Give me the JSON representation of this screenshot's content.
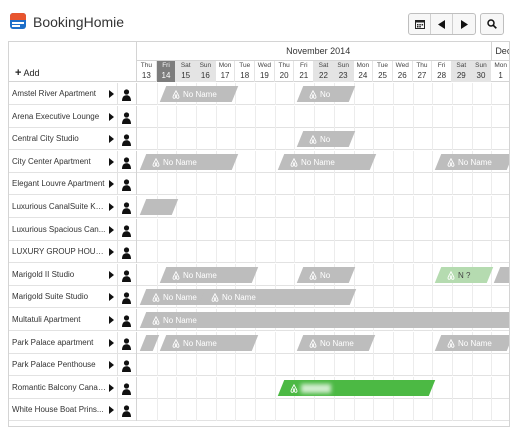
{
  "app": {
    "name": "BookingHomie"
  },
  "toolbar": {
    "calendar_icon": "calendar-icon",
    "prev_icon": "prev-arrow-icon",
    "next_icon": "next-arrow-icon",
    "search_icon": "search-icon"
  },
  "calendar": {
    "add_label": "Add",
    "months": [
      {
        "label": "November 2014"
      },
      {
        "label": "Dec"
      }
    ],
    "days": [
      {
        "dn": "Thu",
        "dd": "13",
        "kind": ""
      },
      {
        "dn": "Fri",
        "dd": "14",
        "kind": "today"
      },
      {
        "dn": "Sat",
        "dd": "15",
        "kind": "weekend"
      },
      {
        "dn": "Sun",
        "dd": "16",
        "kind": "weekend"
      },
      {
        "dn": "Mon",
        "dd": "17",
        "kind": ""
      },
      {
        "dn": "Tue",
        "dd": "18",
        "kind": ""
      },
      {
        "dn": "Wed",
        "dd": "19",
        "kind": ""
      },
      {
        "dn": "Thu",
        "dd": "20",
        "kind": ""
      },
      {
        "dn": "Fri",
        "dd": "21",
        "kind": ""
      },
      {
        "dn": "Sat",
        "dd": "22",
        "kind": "weekend"
      },
      {
        "dn": "Sun",
        "dd": "23",
        "kind": "weekend"
      },
      {
        "dn": "Mon",
        "dd": "24",
        "kind": ""
      },
      {
        "dn": "Tue",
        "dd": "25",
        "kind": ""
      },
      {
        "dn": "Wed",
        "dd": "26",
        "kind": ""
      },
      {
        "dn": "Thu",
        "dd": "27",
        "kind": ""
      },
      {
        "dn": "Fri",
        "dd": "28",
        "kind": ""
      },
      {
        "dn": "Sat",
        "dd": "29",
        "kind": "weekend"
      },
      {
        "dn": "Sun",
        "dd": "30",
        "kind": "weekend"
      },
      {
        "dn": "Mon",
        "dd": "1",
        "kind": ""
      }
    ],
    "colors": {
      "booking_grey": "#bdbdbd",
      "booking_green": "#4cb944",
      "booking_light_green": "#b5dbb0",
      "today": "#7d7d7d",
      "weekend": "#e4e4e4"
    },
    "rows": [
      {
        "name": "Amstel River Apartment",
        "bookings": [
          {
            "start": "2014-11-14",
            "end": "2014-11-17",
            "label": "No Name",
            "icon": "airbnb-icon",
            "color": "grey"
          },
          {
            "start": "2014-11-21",
            "end": "2014-11-23",
            "label": "No",
            "icon": "airbnb-icon",
            "color": "grey"
          }
        ]
      },
      {
        "name": "Arena Executive Lounge",
        "bookings": []
      },
      {
        "name": "Central City Studio",
        "bookings": [
          {
            "start": "2014-11-21",
            "end": "2014-11-23",
            "label": "No",
            "icon": "airbnb-icon",
            "color": "grey"
          }
        ]
      },
      {
        "name": "City Center Apartment",
        "bookings": [
          {
            "start": "2014-11-13",
            "end": "2014-11-17",
            "label": "No Name",
            "icon": "airbnb-icon",
            "color": "grey"
          },
          {
            "start": "2014-11-20",
            "end": "2014-11-24",
            "label": "No Name",
            "icon": "airbnb-icon",
            "color": "grey"
          },
          {
            "start": "2014-11-28",
            "end": "2014-12-01",
            "label": "No Name",
            "icon": "airbnb-icon",
            "color": "grey"
          }
        ]
      },
      {
        "name": "Elegant Louvre Apartment",
        "bookings": []
      },
      {
        "name": "Luxurious CanalSuite Ke...",
        "bookings": [
          {
            "start": "2014-11-13",
            "end": "2014-11-14",
            "label": "",
            "icon": "",
            "color": "grey"
          }
        ]
      },
      {
        "name": "Luxurious Spacious Can...",
        "bookings": []
      },
      {
        "name": "LUXURY GROUP HOUS...",
        "bookings": []
      },
      {
        "name": "Marigold II Studio",
        "bookings": [
          {
            "start": "2014-11-14",
            "end": "2014-11-18",
            "label": "No Name",
            "icon": "airbnb-icon",
            "color": "grey"
          },
          {
            "start": "2014-11-21",
            "end": "2014-11-23",
            "label": "No",
            "icon": "airbnb-icon",
            "color": "grey"
          },
          {
            "start": "2014-11-28",
            "end": "2014-11-30",
            "label": "N ?",
            "icon": "airbnb-icon",
            "color": "lightgreen"
          },
          {
            "start": "2014-12-01",
            "end": "2014-12-02",
            "label": "",
            "icon": "",
            "color": "grey"
          }
        ]
      },
      {
        "name": "Marigold Suite Studio",
        "bookings": [
          {
            "start": "2014-11-13",
            "end": "2014-11-16",
            "label": "No Name",
            "icon": "airbnb-icon",
            "color": "grey"
          },
          {
            "start": "2014-11-16",
            "end": "2014-11-23",
            "label": "No Name",
            "icon": "airbnb-icon",
            "color": "grey"
          }
        ]
      },
      {
        "name": "Multatuli Apartment",
        "bookings": [
          {
            "start": "2014-11-13",
            "end": "2014-12-02",
            "label": "No Name",
            "icon": "airbnb-icon",
            "color": "grey"
          }
        ]
      },
      {
        "name": "Park Palace apartment",
        "bookings": [
          {
            "start": "2014-11-13",
            "end": "2014-11-13",
            "label": "",
            "icon": "",
            "color": "grey"
          },
          {
            "start": "2014-11-14",
            "end": "2014-11-18",
            "label": "No Name",
            "icon": "airbnb-icon",
            "color": "grey"
          },
          {
            "start": "2014-11-21",
            "end": "2014-11-24",
            "label": "No Name",
            "icon": "airbnb-icon",
            "color": "grey"
          },
          {
            "start": "2014-11-28",
            "end": "2014-12-01",
            "label": "No Name",
            "icon": "airbnb-icon",
            "color": "grey"
          }
        ]
      },
      {
        "name": "Park Palace Penthouse",
        "bookings": []
      },
      {
        "name": "Romantic Balcony Canal...",
        "bookings": [
          {
            "start": "2014-11-20",
            "end": "2014-11-27",
            "label": "",
            "icon": "airbnb-icon",
            "color": "green",
            "blurred": true
          }
        ]
      },
      {
        "name": "White House Boat Prins...",
        "bookings": []
      }
    ]
  }
}
